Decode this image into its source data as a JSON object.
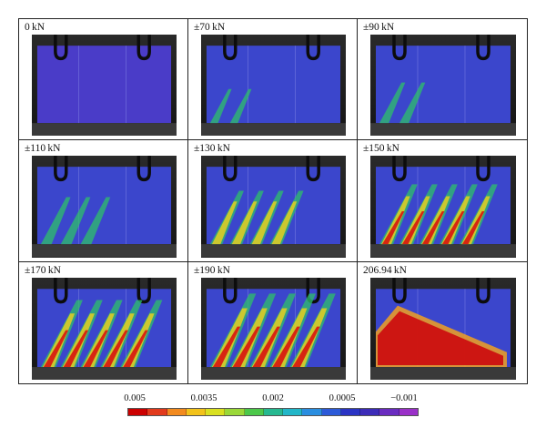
{
  "panels": [
    {
      "label": "0 kN",
      "stage": 0
    },
    {
      "label": "±70 kN",
      "stage": 1
    },
    {
      "label": "±90 kN",
      "stage": 2
    },
    {
      "label": "±110 kN",
      "stage": 3
    },
    {
      "label": "±130 kN",
      "stage": 4
    },
    {
      "label": "±150 kN",
      "stage": 5
    },
    {
      "label": "±170 kN",
      "stage": 6
    },
    {
      "label": "±190 kN",
      "stage": 7
    },
    {
      "label": "206.94 kN",
      "stage": 8
    }
  ],
  "scale": {
    "ticks": [
      "0.005",
      "0.0035",
      "0.002",
      "0.0005",
      "−0.001"
    ],
    "colors": [
      "#cc0000",
      "#e23a1c",
      "#f28a1e",
      "#f2c21a",
      "#d9e020",
      "#9ad838",
      "#4cc84a",
      "#26b890",
      "#22b6c8",
      "#2a8ee0",
      "#2c5ad8",
      "#2a34c4",
      "#3c2cb8",
      "#6a2cc0",
      "#9a30c8"
    ]
  }
}
